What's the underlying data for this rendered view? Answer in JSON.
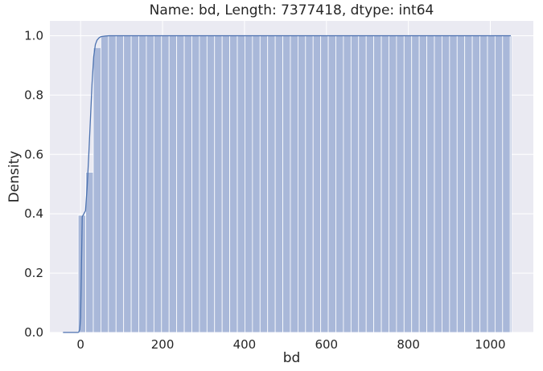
{
  "chart_data": {
    "type": "histogram-cdf",
    "title": "Name: bd, Length: 7377418, dtype: int64",
    "xlabel": "bd",
    "ylabel": "Density",
    "xlim": [
      -75,
      1105
    ],
    "ylim": [
      0,
      1.05
    ],
    "xticks": [
      0,
      200,
      400,
      600,
      800,
      1000
    ],
    "xtick_labels": [
      "0",
      "200",
      "400",
      "600",
      "800",
      "1000"
    ],
    "yticks": [
      0,
      0.2,
      0.4,
      0.6,
      0.8,
      1.0
    ],
    "ytick_labels": [
      "0.0",
      "0.2",
      "0.4",
      "0.6",
      "0.8",
      "1.0"
    ],
    "grid": true,
    "colors": {
      "background": "#eaeaf2",
      "grid": "#ffffff",
      "bar_fill": "#a9b8d9",
      "bar_edge": "#ffffff",
      "line": "#4c72b0",
      "text": "#262626"
    },
    "bins": {
      "start": -43,
      "width": 18.5,
      "cumulative_values": [
        0.0,
        0.0,
        0.395,
        0.54,
        0.96,
        1.0
      ]
    },
    "cdf_curve": {
      "x": [
        -5,
        -2,
        0,
        2,
        4,
        8,
        12,
        16,
        20,
        24,
        28,
        32,
        36,
        40,
        45,
        50,
        60,
        70,
        80,
        1050
      ],
      "y": [
        0.0,
        0.01,
        0.05,
        0.22,
        0.39,
        0.4,
        0.41,
        0.49,
        0.6,
        0.72,
        0.84,
        0.93,
        0.97,
        0.985,
        0.993,
        0.997,
        0.999,
        1.0,
        1.0,
        1.0
      ]
    }
  }
}
